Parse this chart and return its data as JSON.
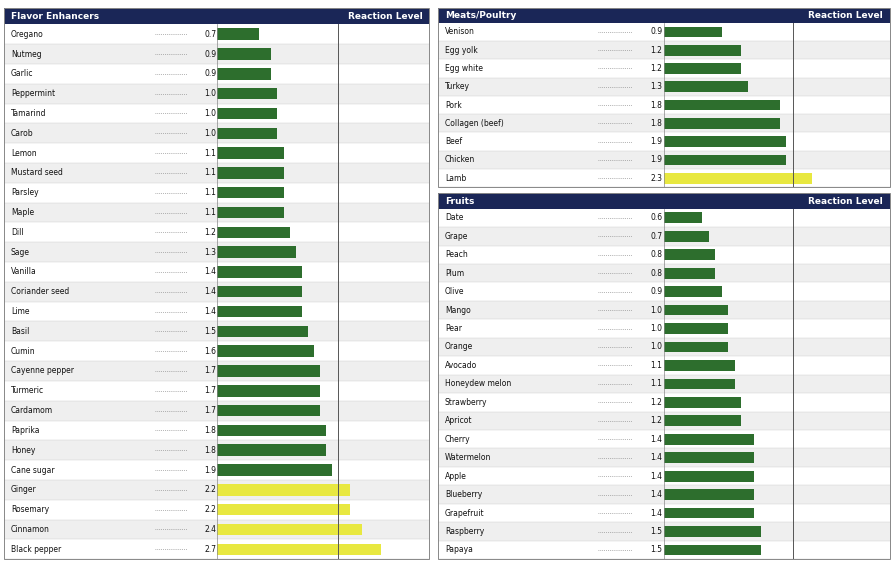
{
  "flavor_enhancers": {
    "title": "Flavor Enhancers",
    "col_header": "Reaction Level",
    "items": [
      [
        "Oregano",
        0.7
      ],
      [
        "Nutmeg",
        0.9
      ],
      [
        "Garlic",
        0.9
      ],
      [
        "Peppermint",
        1.0
      ],
      [
        "Tamarind",
        1.0
      ],
      [
        "Carob",
        1.0
      ],
      [
        "Lemon",
        1.1
      ],
      [
        "Mustard seed",
        1.1
      ],
      [
        "Parsley",
        1.1
      ],
      [
        "Maple",
        1.1
      ],
      [
        "Dill",
        1.2
      ],
      [
        "Sage",
        1.3
      ],
      [
        "Vanilla",
        1.4
      ],
      [
        "Coriander seed",
        1.4
      ],
      [
        "Lime",
        1.4
      ],
      [
        "Basil",
        1.5
      ],
      [
        "Cumin",
        1.6
      ],
      [
        "Cayenne pepper",
        1.7
      ],
      [
        "Turmeric",
        1.7
      ],
      [
        "Cardamom",
        1.7
      ],
      [
        "Paprika",
        1.8
      ],
      [
        "Honey",
        1.8
      ],
      [
        "Cane sugar",
        1.9
      ],
      [
        "Ginger",
        2.2
      ],
      [
        "Rosemary",
        2.2
      ],
      [
        "Cinnamon",
        2.4
      ],
      [
        "Black pepper",
        2.7
      ]
    ]
  },
  "meats_poultry": {
    "title": "Meats/Poultry",
    "col_header": "Reaction Level",
    "items": [
      [
        "Venison",
        0.9
      ],
      [
        "Egg yolk",
        1.2
      ],
      [
        "Egg white",
        1.2
      ],
      [
        "Turkey",
        1.3
      ],
      [
        "Pork",
        1.8
      ],
      [
        "Collagen (beef)",
        1.8
      ],
      [
        "Beef",
        1.9
      ],
      [
        "Chicken",
        1.9
      ],
      [
        "Lamb",
        2.3
      ]
    ]
  },
  "fruits": {
    "title": "Fruits",
    "col_header": "Reaction Level",
    "items": [
      [
        "Date",
        0.6
      ],
      [
        "Grape",
        0.7
      ],
      [
        "Peach",
        0.8
      ],
      [
        "Plum",
        0.8
      ],
      [
        "Olive",
        0.9
      ],
      [
        "Mango",
        1.0
      ],
      [
        "Pear",
        1.0
      ],
      [
        "Orange",
        1.0
      ],
      [
        "Avocado",
        1.1
      ],
      [
        "Honeydew melon",
        1.1
      ],
      [
        "Strawberry",
        1.2
      ],
      [
        "Apricot",
        1.2
      ],
      [
        "Cherry",
        1.4
      ],
      [
        "Watermelon",
        1.4
      ],
      [
        "Apple",
        1.4
      ],
      [
        "Blueberry",
        1.4
      ],
      [
        "Grapefruit",
        1.4
      ],
      [
        "Raspberry",
        1.5
      ],
      [
        "Papaya",
        1.5
      ]
    ]
  },
  "header_bg": "#1a2657",
  "header_fg": "#ffffff",
  "border_color": "#888888",
  "green_color": "#2d6e2d",
  "yellow_color": "#e8e840",
  "threshold_yellow": 2.0,
  "bar_display_max": 3.5,
  "vline_x": 2.0,
  "label_color": "#111111",
  "value_color": "#111111",
  "dash_color": "#888888",
  "row_bg_white": "#ffffff",
  "row_bg_gray": "#efefef"
}
